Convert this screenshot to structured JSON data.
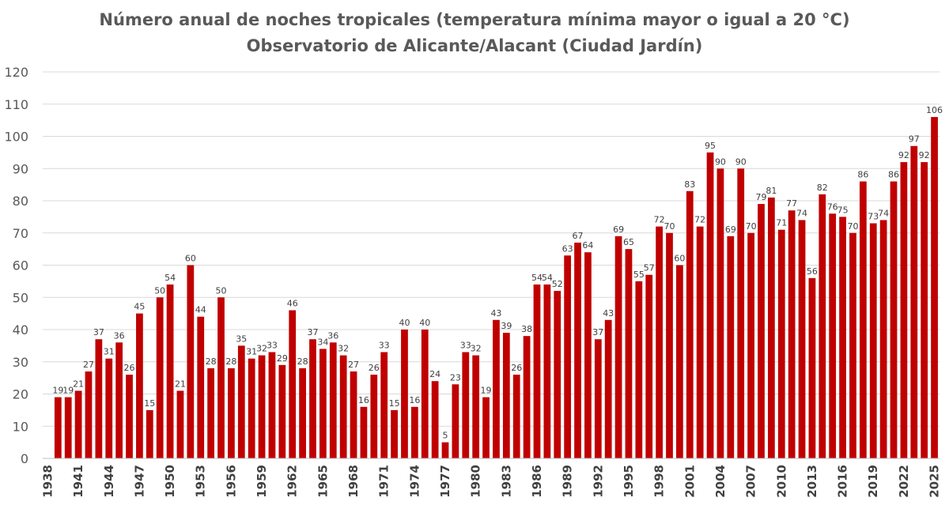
{
  "chart_data": {
    "type": "bar",
    "title": "Número anual de noches tropicales (temperatura mínima mayor o igual a 20 °C)",
    "subtitle": "Observatorio de Alicante/Alacant (Ciudad Jardín)",
    "xlabel": "",
    "ylabel": "",
    "ylim": [
      0,
      120
    ],
    "yticks": [
      0,
      10,
      20,
      30,
      40,
      50,
      60,
      70,
      80,
      90,
      100,
      110,
      120
    ],
    "grid": true,
    "legend": "none",
    "bar_color": "#C00000",
    "categories": [
      "1938",
      "1939",
      "1940",
      "1941",
      "1942",
      "1943",
      "1944",
      "1945",
      "1946",
      "1947",
      "1948",
      "1949",
      "1950",
      "1951",
      "1952",
      "1953",
      "1954",
      "1955",
      "1956",
      "1957",
      "1958",
      "1959",
      "1960",
      "1961",
      "1962",
      "1963",
      "1964",
      "1965",
      "1966",
      "1967",
      "1968",
      "1969",
      "1970",
      "1971",
      "1972",
      "1973",
      "1974",
      "1975",
      "1976",
      "1977",
      "1978",
      "1979",
      "1980",
      "1981",
      "1982",
      "1983",
      "1984",
      "1985",
      "1986",
      "1987",
      "1988",
      "1989",
      "1990",
      "1991",
      "1992",
      "1993",
      "1994",
      "1995",
      "1996",
      "1997",
      "1998",
      "1999",
      "2000",
      "2001",
      "2002",
      "2003",
      "2004",
      "2005",
      "2006",
      "2007",
      "2008",
      "2009",
      "2010",
      "2011",
      "2012",
      "2013",
      "2014",
      "2015",
      "2016",
      "2017",
      "2018",
      "2019",
      "2020",
      "2021",
      "2022",
      "2023",
      "2024",
      "2025"
    ],
    "xtick_labels": [
      "1938",
      "1941",
      "1944",
      "1947",
      "1950",
      "1953",
      "1956",
      "1959",
      "1962",
      "1965",
      "1968",
      "1971",
      "1974",
      "1977",
      "1980",
      "1983",
      "1986",
      "1989",
      "1992",
      "1995",
      "1998",
      "2001",
      "2004",
      "2007",
      "2010",
      "2013",
      "2016",
      "2019",
      "2022",
      "2025"
    ],
    "values": [
      null,
      19,
      19,
      21,
      27,
      37,
      31,
      36,
      26,
      45,
      15,
      50,
      54,
      21,
      60,
      44,
      28,
      50,
      28,
      35,
      31,
      32,
      33,
      29,
      46,
      28,
      37,
      34,
      36,
      32,
      27,
      16,
      26,
      33,
      15,
      40,
      16,
      40,
      24,
      5,
      23,
      33,
      32,
      19,
      43,
      39,
      26,
      38,
      54,
      54,
      52,
      63,
      67,
      64,
      37,
      43,
      69,
      65,
      55,
      57,
      72,
      70,
      60,
      83,
      72,
      95,
      90,
      69,
      90,
      70,
      79,
      81,
      71,
      77,
      74,
      56,
      82,
      76,
      75,
      70,
      86,
      73,
      74,
      86,
      92,
      97,
      92,
      106
    ]
  }
}
